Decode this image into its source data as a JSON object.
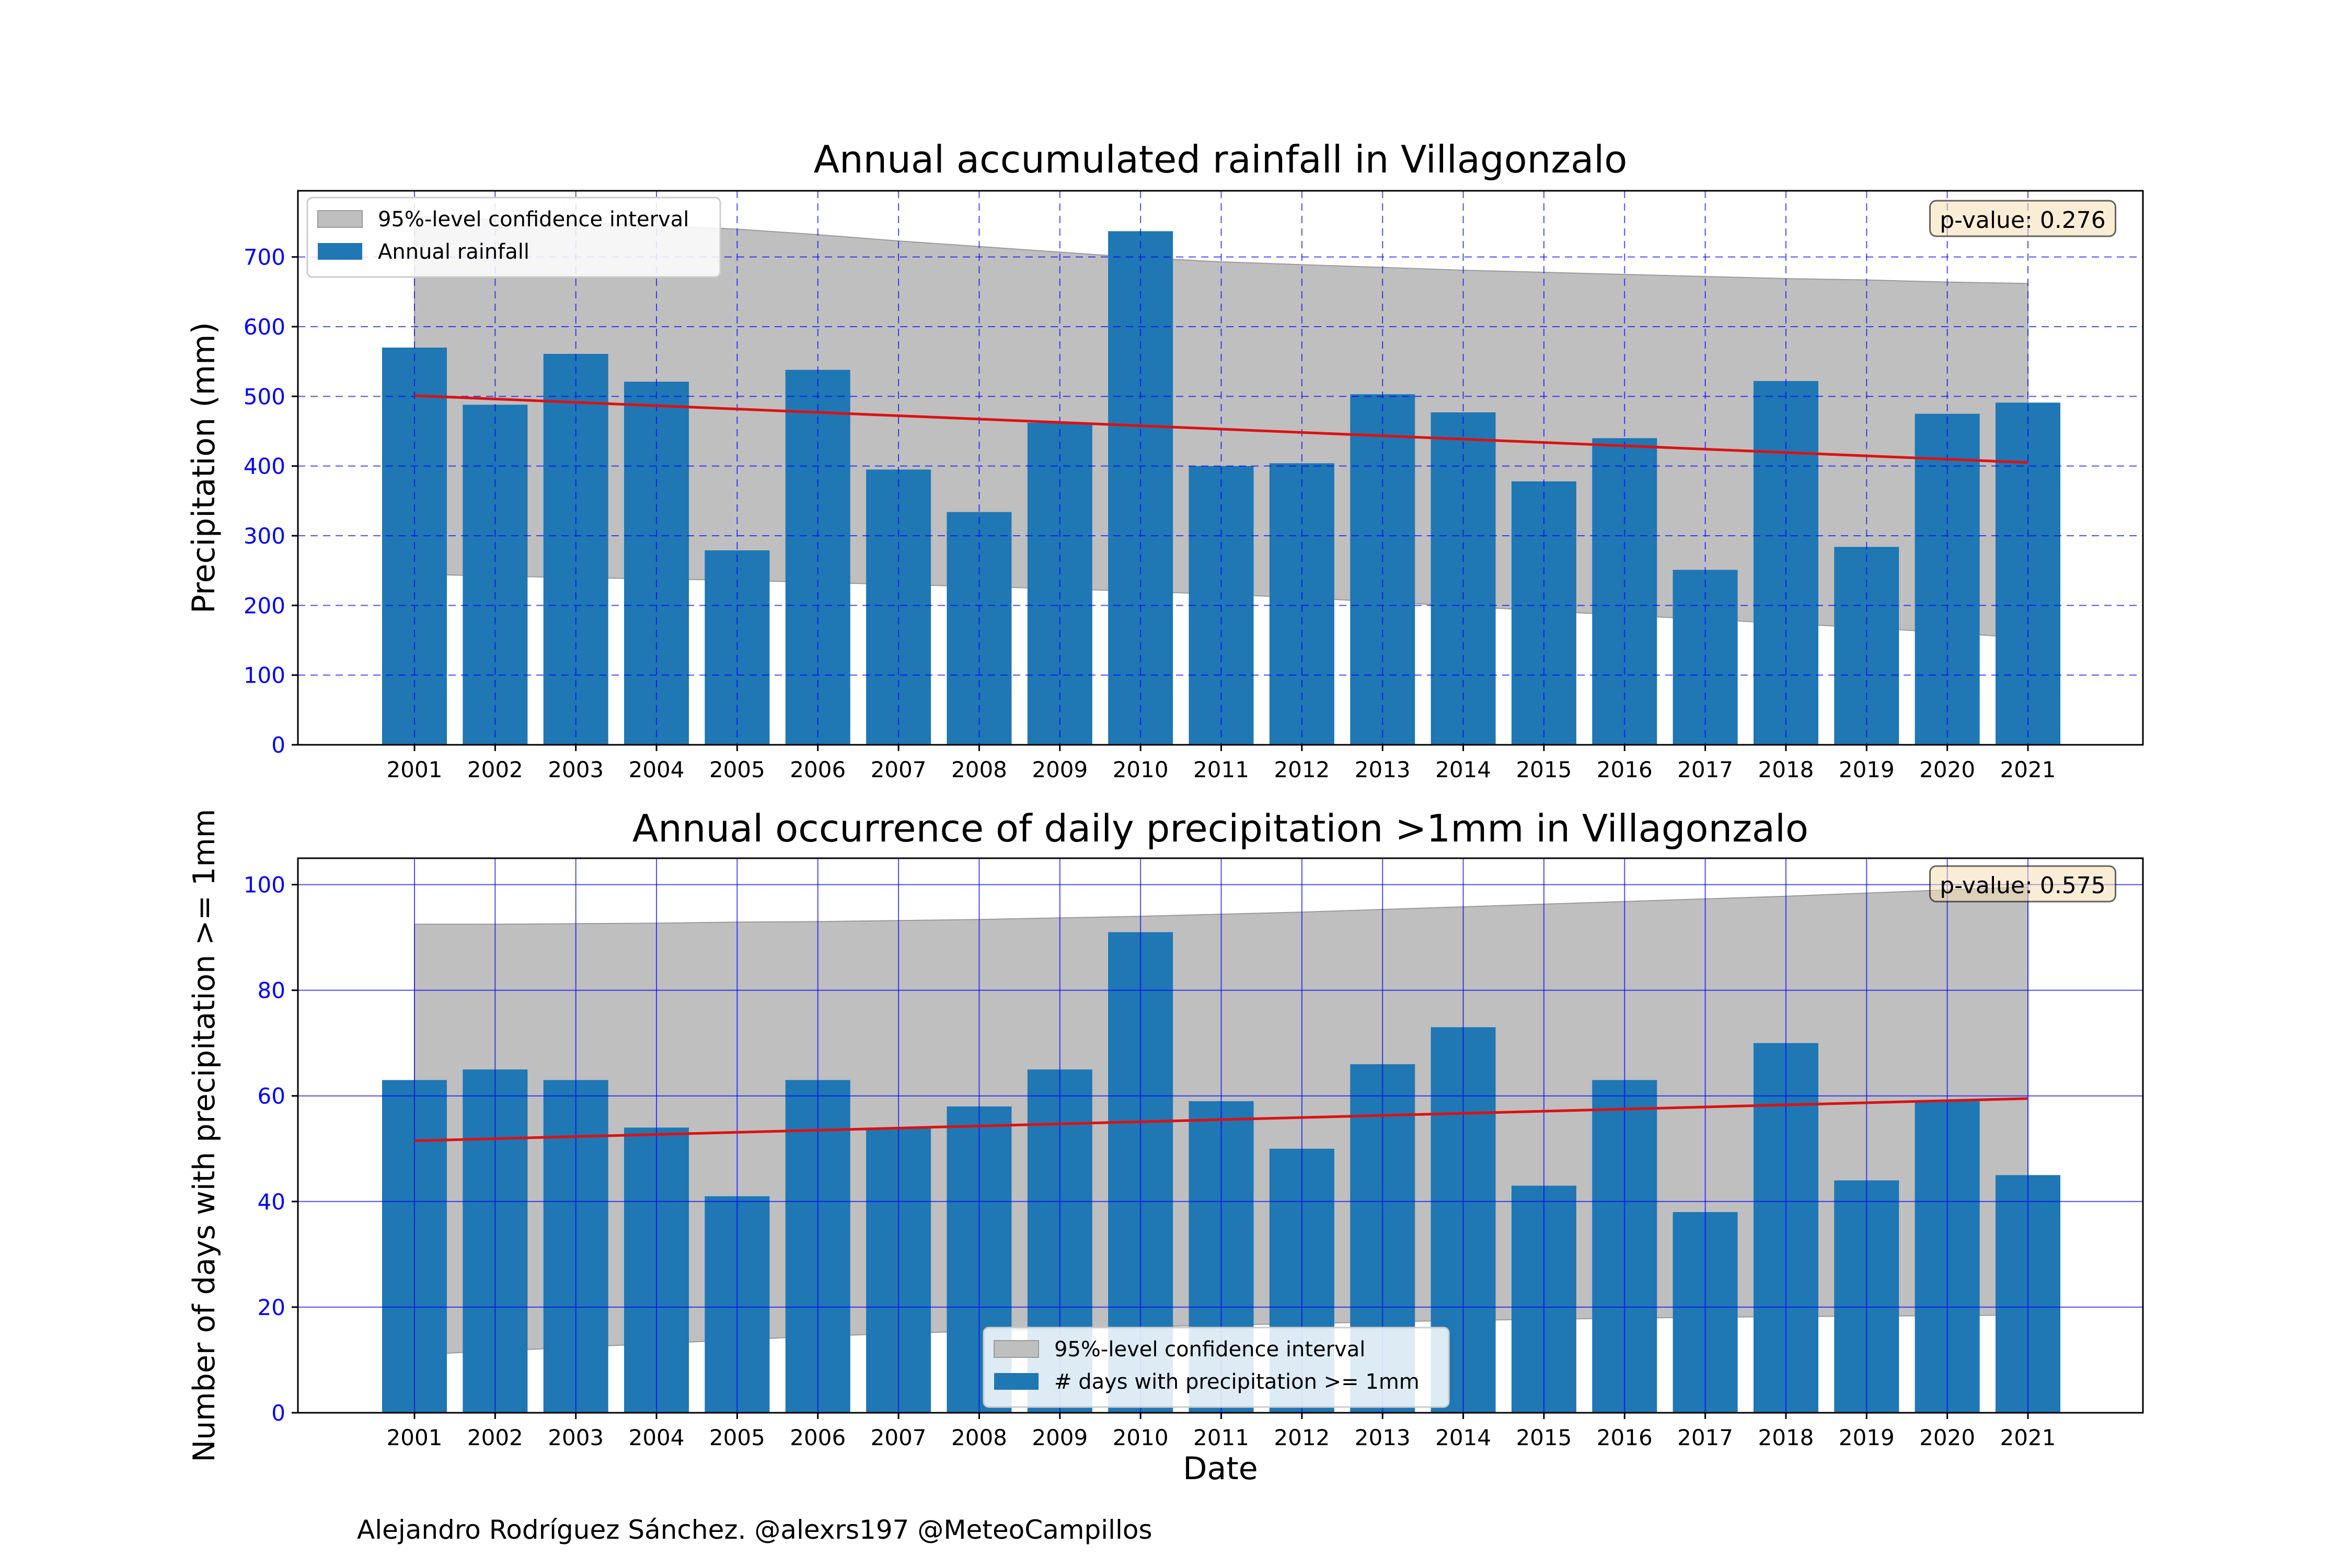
{
  "chart_data": [
    {
      "type": "bar",
      "title": "Annual accumulated rainfall in Villagonzalo",
      "xlabel": "",
      "ylabel": "Precipitation (mm)",
      "categories": [
        "2001",
        "2002",
        "2003",
        "2004",
        "2005",
        "2006",
        "2007",
        "2008",
        "2009",
        "2010",
        "2011",
        "2012",
        "2013",
        "2014",
        "2015",
        "2016",
        "2017",
        "2018",
        "2019",
        "2020",
        "2021"
      ],
      "series": [
        {
          "name": "Annual rainfall",
          "values": [
            570,
            488,
            561,
            521,
            279,
            538,
            395,
            334,
            462,
            737,
            400,
            404,
            503,
            477,
            378,
            440,
            251,
            522,
            284,
            475,
            491
          ]
        }
      ],
      "trend": {
        "start": 501,
        "end": 405,
        "color": "#dd1111"
      },
      "confidence_band": {
        "name": "95%-level confidence interval",
        "upper": [
          758,
          754,
          750,
          745,
          740,
          732,
          723,
          715,
          707,
          699,
          693,
          689,
          685,
          681,
          678,
          675,
          672,
          669,
          667,
          664,
          662
        ],
        "lower": [
          245,
          242,
          240,
          238,
          236,
          233,
          230,
          227,
          224,
          220,
          216,
          211,
          205,
          199,
          192,
          186,
          180,
          174,
          168,
          161,
          153
        ]
      },
      "ylim": [
        0,
        795
      ],
      "yticks": [
        0,
        100,
        200,
        300,
        400,
        500,
        600,
        700
      ],
      "grid": "dashed",
      "legend_position": "upper-left",
      "annotation": "p-value: 0.276",
      "colors": {
        "bar": "#1f77b4",
        "band": "#bfbfbf",
        "grid": "#0000ff",
        "trend": "#dd1111",
        "ytick": "#0000ff"
      }
    },
    {
      "type": "bar",
      "title": "Annual occurrence of daily precipitation >1mm in Villagonzalo",
      "xlabel": "Date",
      "ylabel": "Number of days with precipitation >= 1mm",
      "categories": [
        "2001",
        "2002",
        "2003",
        "2004",
        "2005",
        "2006",
        "2007",
        "2008",
        "2009",
        "2010",
        "2011",
        "2012",
        "2013",
        "2014",
        "2015",
        "2016",
        "2017",
        "2018",
        "2019",
        "2020",
        "2021"
      ],
      "series": [
        {
          "name": "# days with precipitation >= 1mm",
          "values": [
            63,
            65,
            63,
            54,
            41,
            63,
            54,
            58,
            65,
            91,
            59,
            50,
            66,
            73,
            43,
            63,
            38,
            70,
            44,
            59,
            45
          ]
        }
      ],
      "trend": {
        "start": 51.5,
        "end": 59.5,
        "color": "#dd1111"
      },
      "confidence_band": {
        "name": "95%-level confidence interval",
        "upper": [
          92.5,
          92.5,
          92.6,
          92.7,
          92.9,
          93.0,
          93.2,
          93.4,
          93.7,
          94.0,
          94.4,
          94.8,
          95.3,
          95.8,
          96.3,
          96.8,
          97.3,
          97.8,
          98.4,
          99.0,
          99.6
        ],
        "lower": [
          11.0,
          11.7,
          12.4,
          13.1,
          13.8,
          14.5,
          15.0,
          15.5,
          15.9,
          16.3,
          16.6,
          16.9,
          17.2,
          17.5,
          17.7,
          17.9,
          18.1,
          18.2,
          18.3,
          18.4,
          18.5
        ]
      },
      "ylim": [
        0,
        105
      ],
      "yticks": [
        0,
        20,
        40,
        60,
        80,
        100
      ],
      "grid": "solid",
      "legend_position": "lower-center",
      "annotation": "p-value: 0.575",
      "colors": {
        "bar": "#1f77b4",
        "band": "#bfbfbf",
        "grid": "#0000ff",
        "trend": "#dd1111",
        "ytick": "#0000ff"
      }
    }
  ],
  "caption": "Alejandro Rodríguez Sánchez. @alexrs197 @MeteoCampillos"
}
